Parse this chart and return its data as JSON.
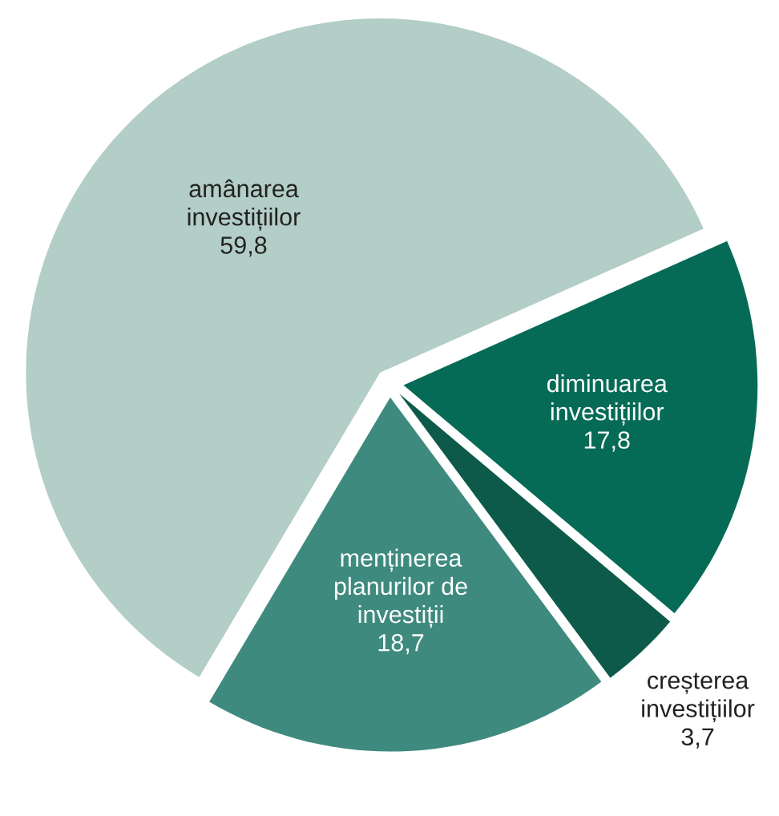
{
  "chart_data": {
    "type": "pie",
    "categories": [
      "amânarea\ninvestițiilor",
      "menținerea\nplanurilor de\ninvestiții",
      "creșterea\ninvestițiilor",
      "diminuarea\ninvestițiilor"
    ],
    "values": [
      59.8,
      18.7,
      3.7,
      17.8
    ],
    "value_labels": [
      "59,8",
      "18,7",
      "3,7",
      "17,8"
    ],
    "colors": [
      "#b3cdc7",
      "#3f8a7e",
      "#0d5a4a",
      "#066b56"
    ],
    "legend": false
  }
}
